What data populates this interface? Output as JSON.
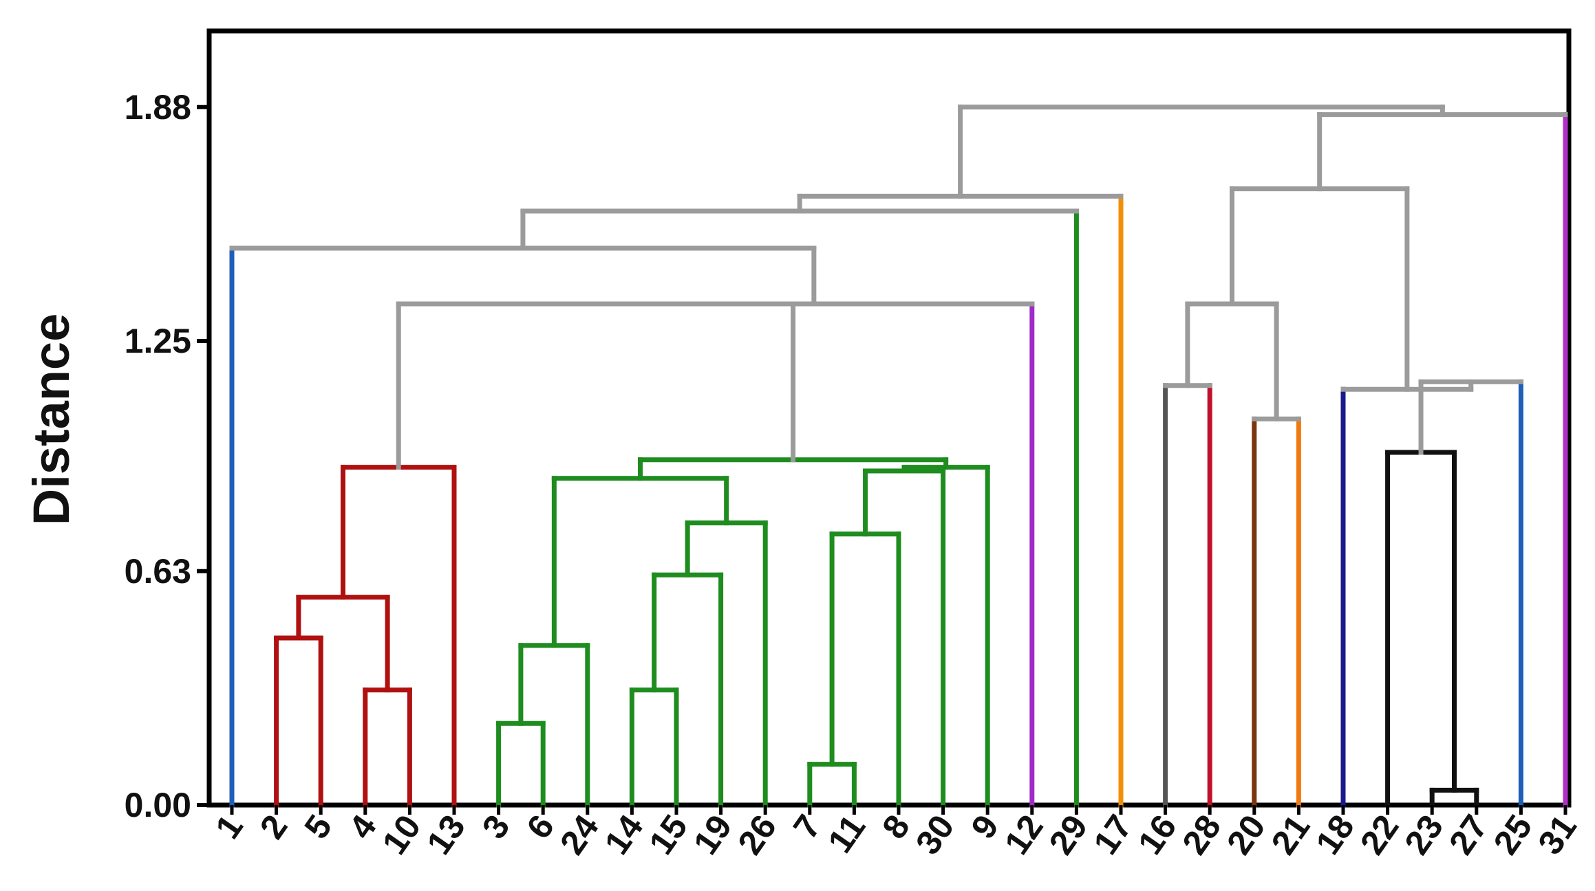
{
  "chart_data": {
    "type": "dendrogram",
    "ylabel": "Distance",
    "ylim": [
      0,
      2.08
    ],
    "yticks": [
      "0.00",
      "0.63",
      "1.25",
      "1.88"
    ],
    "ytick_values": [
      0.0,
      0.63,
      1.25,
      1.88
    ],
    "leaves": [
      "1",
      "2",
      "5",
      "4",
      "10",
      "13",
      "3",
      "6",
      "24",
      "14",
      "15",
      "19",
      "26",
      "7",
      "11",
      "8",
      "30",
      "9",
      "12",
      "29",
      "17",
      "16",
      "28",
      "20",
      "21",
      "18",
      "22",
      "23",
      "27",
      "25",
      "31"
    ],
    "colors": {
      "grey": "#9b9b9b",
      "red": "#b01010",
      "green": "#1e8c1e",
      "blue": "#1f5fb8",
      "purple": "#a02ac8",
      "orange": "#f0900a",
      "darkgrey": "#555555",
      "crimson": "#c0102a",
      "brown": "#7a3510",
      "orange2": "#f07a10",
      "navy": "#1a1a8c",
      "black": "#111111",
      "blue2": "#1f5fb8",
      "magenta": "#b030c8"
    },
    "merges": [
      {
        "id": "m7_11",
        "left": "7",
        "right": "11",
        "height": 0.11,
        "color": "green"
      },
      {
        "id": "m23_27",
        "left": "23",
        "right": "27",
        "height": 0.04,
        "color": "black"
      },
      {
        "id": "m3_6",
        "left": "3",
        "right": "6",
        "height": 0.22,
        "color": "green"
      },
      {
        "id": "m4_10",
        "left": "4",
        "right": "10",
        "height": 0.31,
        "color": "red"
      },
      {
        "id": "m14_15",
        "left": "14",
        "right": "15",
        "height": 0.31,
        "color": "green"
      },
      {
        "id": "m3_24",
        "left": "m3_6",
        "right": "24",
        "height": 0.43,
        "color": "green"
      },
      {
        "id": "m2_5",
        "left": "2",
        "right": "5",
        "height": 0.45,
        "color": "red"
      },
      {
        "id": "m2_4",
        "left": "m2_5",
        "right": "m4_10",
        "height": 0.56,
        "color": "red"
      },
      {
        "id": "m14_19",
        "left": "m14_15",
        "right": "19",
        "height": 0.62,
        "color": "green"
      },
      {
        "id": "m7_8",
        "left": "m7_11",
        "right": "8",
        "height": 0.73,
        "color": "green"
      },
      {
        "id": "m14_26",
        "left": "m14_19",
        "right": "26",
        "height": 0.76,
        "color": "green"
      },
      {
        "id": "m3_14",
        "left": "m3_24",
        "right": "m14_26",
        "height": 0.88,
        "color": "green"
      },
      {
        "id": "m7_30",
        "left": "m7_8",
        "right": "30",
        "height": 0.9,
        "color": "green"
      },
      {
        "id": "m7_9",
        "left": "m7_30",
        "right": "9",
        "height": 0.91,
        "color": "green"
      },
      {
        "id": "m3_7",
        "left": "m3_14",
        "right": "m7_9",
        "height": 0.93,
        "color": "green"
      },
      {
        "id": "m2_13",
        "left": "m2_4",
        "right": "13",
        "height": 0.91,
        "color": "red"
      },
      {
        "id": "m22_23",
        "left": "22",
        "right": "m23_27",
        "height": 0.95,
        "color": "black"
      },
      {
        "id": "m20_21",
        "left": "20",
        "right": "21",
        "height": 1.04,
        "color": "grey",
        "left_color": "brown",
        "right_color": "orange2"
      },
      {
        "id": "m22_25",
        "left": "m22_23",
        "right": "25",
        "height": 1.14,
        "color": "grey",
        "right_color": "blue2"
      },
      {
        "id": "m16_28",
        "left": "16",
        "right": "28",
        "height": 1.13,
        "color": "grey",
        "left_color": "darkgrey",
        "right_color": "crimson"
      },
      {
        "id": "m18_22",
        "left": "18",
        "right": "m22_25",
        "height": 1.12,
        "color": "grey",
        "left_color": "navy"
      },
      {
        "id": "m16_20",
        "left": "m16_28",
        "right": "m20_21",
        "height": 1.35,
        "color": "grey"
      },
      {
        "id": "m2_3",
        "left": "m2_13",
        "right": "m3_7",
        "height": 1.35,
        "color": "grey"
      },
      {
        "id": "m2_12",
        "left": "m2_3",
        "right": "12",
        "height": 1.35,
        "color": "grey",
        "right_color": "purple"
      },
      {
        "id": "m1_2",
        "left": "1",
        "right": "m2_12",
        "height": 1.5,
        "color": "grey",
        "left_color": "blue"
      },
      {
        "id": "m1_29",
        "left": "m1_2",
        "right": "29",
        "height": 1.6,
        "color": "grey",
        "right_color": "green"
      },
      {
        "id": "m1_17",
        "left": "m1_29",
        "right": "17",
        "height": 1.64,
        "color": "grey",
        "right_color": "orange"
      },
      {
        "id": "m16_18",
        "left": "m16_20",
        "right": "m18_22",
        "height": 1.66,
        "color": "grey"
      },
      {
        "id": "m16_31",
        "left": "m16_18",
        "right": "31",
        "height": 1.86,
        "color": "grey",
        "right_color": "magenta"
      },
      {
        "id": "m1_16",
        "left": "m1_17",
        "right": "m16_31",
        "height": 1.88,
        "color": "grey"
      }
    ]
  }
}
